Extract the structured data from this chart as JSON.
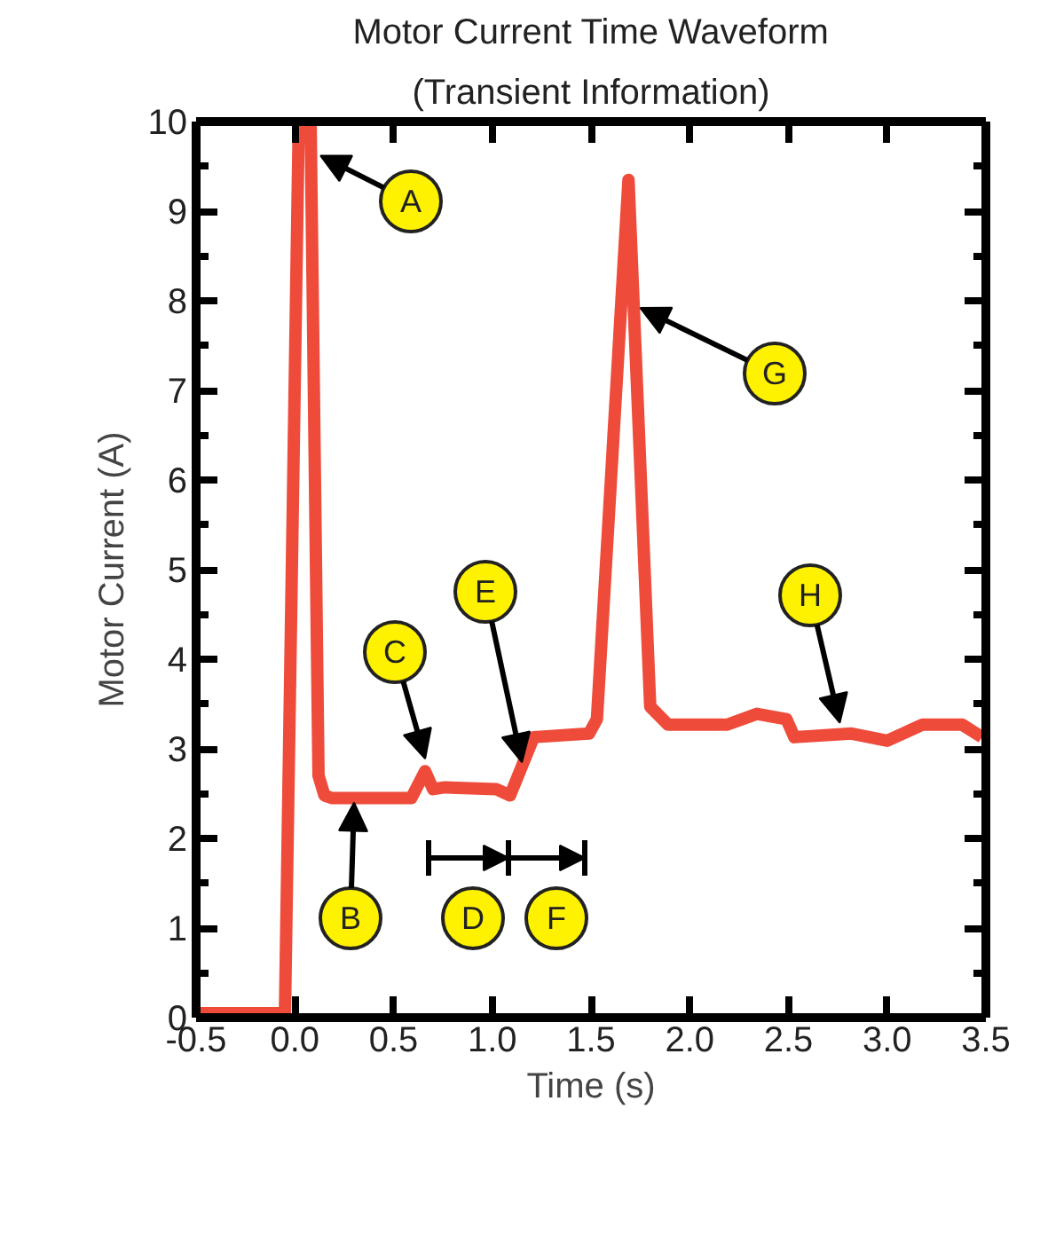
{
  "chart_data": {
    "type": "line",
    "title": "Motor Current Time Waveform",
    "subtitle": "(Transient Information)",
    "xlabel": "Time (s)",
    "ylabel": "Motor Current (A)",
    "x": [
      -0.5,
      -0.05,
      0.02,
      0.08,
      0.12,
      0.15,
      0.19,
      0.59,
      0.66,
      0.7,
      0.76,
      1.02,
      1.09,
      1.21,
      1.49,
      1.53,
      1.69,
      1.8,
      1.89,
      2.19,
      2.34,
      2.49,
      2.53,
      2.82,
      3.0,
      3.18,
      3.38,
      3.48
    ],
    "series": [
      {
        "color": "#ee4b3b",
        "values": [
          0.05,
          0.05,
          10.0,
          10.0,
          2.7,
          2.48,
          2.45,
          2.45,
          2.75,
          2.55,
          2.57,
          2.55,
          2.48,
          3.13,
          3.17,
          3.33,
          9.35,
          3.47,
          3.27,
          3.27,
          3.39,
          3.33,
          3.13,
          3.17,
          3.09,
          3.27,
          3.27,
          3.13
        ]
      }
    ],
    "xlim": [
      -0.5,
      3.5
    ],
    "ylim": [
      0,
      10
    ],
    "xticks": [
      {
        "value": -0.5,
        "label": "-0.5"
      },
      {
        "value": 0,
        "label": "0.0"
      },
      0.5,
      {
        "value": 1,
        "label": "1.0"
      },
      1.5,
      {
        "value": 2,
        "label": "2.0"
      },
      2.5,
      {
        "value": 3,
        "label": "3.0"
      },
      3.5
    ],
    "yticks": [
      0,
      1,
      2,
      3,
      4,
      5,
      6,
      7,
      8,
      9,
      10
    ],
    "grid": false,
    "marker": "none",
    "line_style": "solid",
    "annotations": [
      {
        "text": "A",
        "x": 0.13,
        "y": 9.62
      },
      {
        "text": "B",
        "x": 0.3,
        "y": 2.4
      },
      {
        "text": "C",
        "x": 0.66,
        "y": 2.89
      },
      "D",
      {
        "text": "E",
        "x": 1.15,
        "y": 2.85
      },
      "F",
      {
        "text": "G",
        "x": 1.75,
        "y": 7.92
      },
      {
        "text": "H",
        "x": 2.76,
        "y": 3.29
      }
    ]
  }
}
